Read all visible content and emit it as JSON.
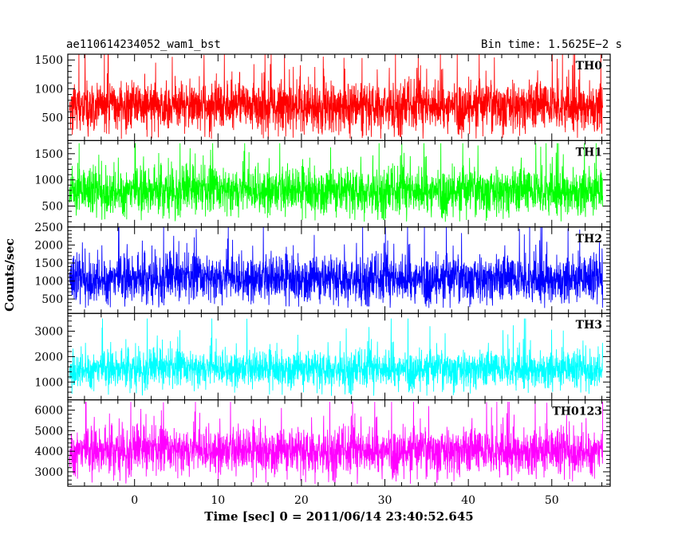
{
  "chart_data": {
    "type": "line",
    "title_left": "ae110614234052_wam1_bst",
    "title_right": "Bin time: 1.5625E−2 s",
    "xlabel": "Time [sec] 0 = 2011/06/14 23:40:52.645",
    "ylabel": "Counts/sec",
    "xlim": [
      -8.0,
      57.0
    ],
    "x_range_data": [
      -7.8,
      56.1
    ],
    "xticks": [
      0,
      10,
      20,
      30,
      40,
      50
    ],
    "xtick_labels": [
      "0",
      "10",
      "20",
      "30",
      "40",
      "50"
    ],
    "panels": [
      {
        "name": "TH0",
        "color": "#ff0000",
        "ylim": [
          100,
          1600
        ],
        "yticks": [
          500,
          1000,
          1500
        ],
        "ytick_labels": [
          "500",
          "1000",
          "1500"
        ],
        "mean": 700,
        "spread": 250,
        "min": 130,
        "max": 1600
      },
      {
        "name": "TH1",
        "color": "#00ff00",
        "ylim": [
          100,
          1750
        ],
        "yticks": [
          500,
          1000,
          1500
        ],
        "ytick_labels": [
          "500",
          "1000",
          "1500"
        ],
        "mean": 780,
        "spread": 260,
        "min": 200,
        "max": 1700
      },
      {
        "name": "TH2",
        "color": "#0000ff",
        "ylim": [
          100,
          2500
        ],
        "yticks": [
          500,
          1000,
          1500,
          2000,
          2500
        ],
        "ytick_labels": [
          "500",
          "1000",
          "1500",
          "2000",
          "2500"
        ],
        "mean": 1050,
        "spread": 380,
        "min": 250,
        "max": 2500
      },
      {
        "name": "TH3",
        "color": "#00ffff",
        "ylim": [
          300,
          3700
        ],
        "yticks": [
          1000,
          2000,
          3000
        ],
        "ytick_labels": [
          "1000",
          "2000",
          "3000"
        ],
        "mean": 1500,
        "spread": 420,
        "min": 450,
        "max": 3500
      },
      {
        "name": "TH0123",
        "color": "#ff00ff",
        "ylim": [
          2300,
          6500
        ],
        "yticks": [
          3000,
          4000,
          5000,
          6000
        ],
        "ytick_labels": [
          "3000",
          "4000",
          "5000",
          "6000"
        ],
        "mean": 4000,
        "spread": 650,
        "min": 2400,
        "max": 6400
      }
    ],
    "grid": false,
    "legend": "none"
  }
}
